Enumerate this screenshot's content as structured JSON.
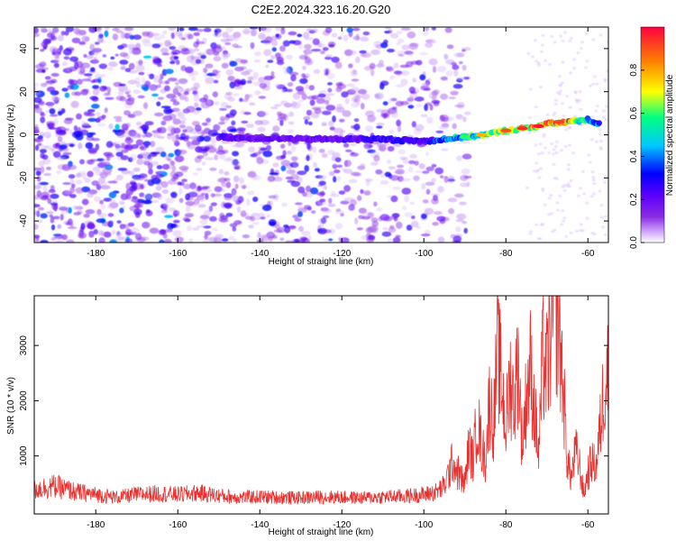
{
  "title": "C2E2.2024.323.16.20.G20",
  "chart_data": [
    {
      "type": "heatmap",
      "xlabel": "Height of straight line (km)",
      "ylabel": "Frequency (Hz)",
      "xlim": [
        -195,
        -55
      ],
      "ylim": [
        -50,
        50
      ],
      "x_ticks": [
        -180,
        -160,
        -140,
        -120,
        -100,
        -80,
        -60
      ],
      "y_ticks": [
        -40,
        -20,
        0,
        20,
        40
      ],
      "grid": false,
      "colorbar": {
        "label": "Normalized spectral amplitude",
        "range": [
          0,
          1
        ],
        "ticks": [
          0.0,
          0.2,
          0.4,
          0.6,
          0.8
        ],
        "tick_labels": [
          "0.0",
          "0.2",
          "0.4",
          "0.6",
          "0.8"
        ],
        "colormap": [
          "#ffffff",
          "#d9b8ff",
          "#8a2be2",
          "#5b00ff",
          "#0000ff",
          "#00c8ff",
          "#00ff80",
          "#ffff00",
          "#ff8000",
          "#ff0040"
        ]
      },
      "signal_track": [
        {
          "x": -150,
          "y": -1,
          "amp": 0.25
        },
        {
          "x": -130,
          "y": -2,
          "amp": 0.2
        },
        {
          "x": -120,
          "y": -2,
          "amp": 0.25
        },
        {
          "x": -110,
          "y": -2,
          "amp": 0.3
        },
        {
          "x": -100,
          "y": -3,
          "amp": 0.3
        },
        {
          "x": -95,
          "y": -2,
          "amp": 0.45
        },
        {
          "x": -90,
          "y": -1,
          "amp": 0.55
        },
        {
          "x": -85,
          "y": 0,
          "amp": 0.65
        },
        {
          "x": -80,
          "y": 2,
          "amp": 0.75
        },
        {
          "x": -75,
          "y": 3,
          "amp": 0.85
        },
        {
          "x": -70,
          "y": 5,
          "amp": 0.9
        },
        {
          "x": -65,
          "y": 6,
          "amp": 0.95
        },
        {
          "x": -60,
          "y": 7,
          "amp": 0.5
        },
        {
          "x": -57,
          "y": 5,
          "amp": 0.4
        }
      ]
    },
    {
      "type": "line",
      "xlabel": "Height of straight line (km)",
      "ylabel": "SNR (10 * v/v)",
      "xlim": [
        -195,
        -55
      ],
      "ylim": [
        -50,
        3900
      ],
      "x_ticks": [
        -180,
        -160,
        -140,
        -120,
        -100,
        -80,
        -60
      ],
      "y_ticks": [
        1000,
        2000,
        3000
      ],
      "grid": false,
      "color": "#e8312f",
      "series": [
        {
          "x": [
            -195,
            -190,
            -185,
            -180,
            -175,
            -170,
            -165,
            -160,
            -155,
            -150,
            -145,
            -140,
            -135,
            -130,
            -125,
            -120,
            -115,
            -110,
            -105,
            -100,
            -97,
            -95,
            -93,
            -91,
            -90,
            -89,
            -88,
            -87,
            -86,
            -85,
            -84,
            -83,
            -82,
            -81,
            -80,
            -79,
            -78,
            -77,
            -76,
            -75,
            -74,
            -73,
            -72,
            -71,
            -70,
            -69,
            -68,
            -67,
            -66,
            -65,
            -64,
            -63,
            -62,
            -61,
            -60,
            -59,
            -58,
            -57,
            -56,
            -55
          ],
          "values": [
            400,
            450,
            350,
            300,
            250,
            300,
            320,
            300,
            330,
            280,
            250,
            260,
            250,
            240,
            260,
            250,
            240,
            260,
            270,
            300,
            350,
            450,
            900,
            600,
            500,
            1200,
            900,
            1700,
            1200,
            900,
            2000,
            1600,
            2900,
            2300,
            1500,
            2400,
            2000,
            2700,
            1200,
            2100,
            2600,
            1800,
            1000,
            2800,
            2500,
            3200,
            3850,
            3300,
            2200,
            900,
            600,
            1100,
            800,
            300,
            700,
            900,
            800,
            1500,
            2300,
            2700
          ]
        }
      ]
    }
  ]
}
